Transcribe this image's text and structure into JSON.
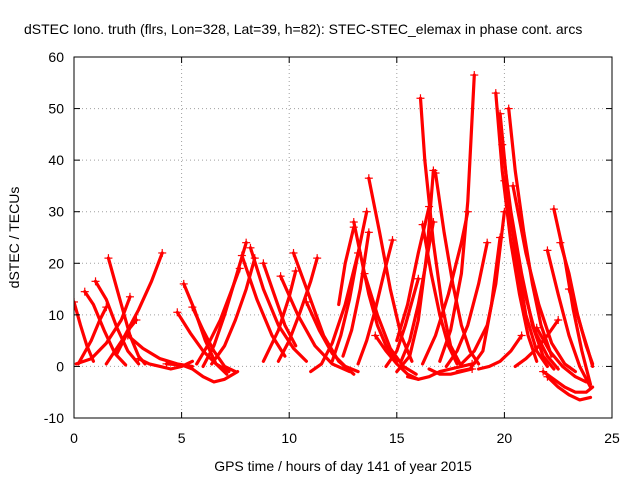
{
  "chart_data": {
    "type": "scatter",
    "title": "dSTEC Iono. truth (flrs, Lon=328, Lat=39, h=82): STEC-STEC_elemax in phase cont. arcs",
    "xlabel": "GPS time / hours of day 141 of year 2015",
    "ylabel": "dSTEC  / TECUs",
    "xlim": [
      0,
      25
    ],
    "ylim": [
      -10,
      60
    ],
    "xticks": [
      0,
      5,
      10,
      15,
      20,
      25
    ],
    "yticks": [
      -10,
      0,
      10,
      20,
      30,
      40,
      50,
      60
    ],
    "grid": true,
    "marker": "+",
    "color": "#ff0000",
    "series": [
      {
        "x": [
          0.0,
          0.3,
          0.6,
          0.9
        ],
        "y": [
          12.5,
          8.0,
          4.0,
          1.0
        ]
      },
      {
        "x": [
          0.1,
          0.8,
          1.5,
          2.2,
          2.6
        ],
        "y": [
          0.5,
          1.5,
          4.5,
          9.0,
          13.5
        ]
      },
      {
        "x": [
          0.5,
          0.9,
          1.4,
          1.9,
          2.4
        ],
        "y": [
          14.5,
          12.0,
          7.0,
          2.5,
          0.3
        ]
      },
      {
        "x": [
          1.0,
          1.5,
          2.0,
          2.5,
          3.0
        ],
        "y": [
          16.5,
          13.0,
          7.5,
          3.0,
          0.5
        ]
      },
      {
        "x": [
          1.6,
          1.8,
          2.2,
          2.6,
          3.0,
          3.3
        ],
        "y": [
          21.0,
          18.0,
          12.0,
          6.0,
          2.0,
          0.5
        ]
      },
      {
        "x": [
          0.2,
          0.8,
          1.2,
          1.5
        ],
        "y": [
          0.5,
          5.0,
          9.0,
          11.5
        ]
      },
      {
        "x": [
          1.5,
          2.3,
          3.0,
          3.6,
          4.1
        ],
        "y": [
          0.5,
          5.5,
          11.0,
          16.5,
          22.0
        ]
      },
      {
        "x": [
          2.0,
          2.3,
          2.6,
          2.9
        ],
        "y": [
          2.5,
          5.0,
          7.5,
          9.0
        ]
      },
      {
        "x": [
          2.5,
          3.2,
          4.0,
          4.8,
          5.5
        ],
        "y": [
          6.0,
          3.5,
          1.5,
          0.5,
          0.0
        ]
      },
      {
        "x": [
          3.0,
          3.5,
          4.0,
          4.5,
          5.0,
          5.5
        ],
        "y": [
          1.5,
          0.5,
          0.0,
          -0.5,
          0.0,
          1.0
        ]
      },
      {
        "x": [
          4.8,
          5.4,
          6.0,
          6.6,
          7.2
        ],
        "y": [
          10.5,
          6.5,
          3.0,
          0.5,
          -1.0
        ]
      },
      {
        "x": [
          5.1,
          5.6,
          6.1,
          6.6,
          7.1
        ],
        "y": [
          16.0,
          11.0,
          5.0,
          0.5,
          -1.5
        ]
      },
      {
        "x": [
          5.5,
          6.0,
          6.5,
          7.0,
          7.5
        ],
        "y": [
          11.5,
          7.0,
          3.0,
          0.0,
          -1.0
        ]
      },
      {
        "x": [
          4.3,
          5.0,
          5.5,
          6.0,
          6.5,
          7.0,
          7.6
        ],
        "y": [
          0.5,
          0.3,
          -0.5,
          -2.0,
          -3.0,
          -2.5,
          -1.0
        ]
      },
      {
        "x": [
          5.7,
          6.2,
          6.8,
          7.3,
          7.7
        ],
        "y": [
          0.5,
          4.0,
          9.0,
          14.5,
          19.0
        ]
      },
      {
        "x": [
          6.0,
          6.5,
          7.0,
          7.5,
          8.0
        ],
        "y": [
          0.0,
          4.0,
          10.0,
          17.0,
          24.0
        ]
      },
      {
        "x": [
          6.4,
          7.0,
          7.5,
          8.0,
          8.4
        ],
        "y": [
          0.5,
          4.0,
          9.0,
          15.0,
          21.0
        ]
      },
      {
        "x": [
          7.8,
          8.5,
          9.2,
          9.8
        ],
        "y": [
          21.5,
          13.0,
          6.0,
          2.0
        ]
      },
      {
        "x": [
          8.2,
          8.8,
          9.5,
          10.2,
          10.8
        ],
        "y": [
          23.0,
          15.0,
          8.0,
          3.5,
          1.0
        ]
      },
      {
        "x": [
          8.8,
          9.3,
          9.8,
          10.3
        ],
        "y": [
          20.0,
          14.0,
          8.0,
          4.0
        ]
      },
      {
        "x": [
          8.8,
          9.5,
          10.0,
          10.3
        ],
        "y": [
          1.0,
          7.0,
          13.5,
          18.5
        ]
      },
      {
        "x": [
          9.5,
          10.0,
          10.5,
          11.0,
          11.3
        ],
        "y": [
          1.0,
          5.0,
          10.5,
          16.5,
          21.0
        ]
      },
      {
        "x": [
          9.6,
          10.4,
          11.2,
          12.0,
          12.8
        ],
        "y": [
          17.5,
          10.0,
          4.0,
          0.5,
          -1.0
        ]
      },
      {
        "x": [
          10.2,
          10.9,
          11.6,
          12.3,
          13.0
        ],
        "y": [
          22.0,
          14.0,
          6.0,
          1.0,
          -1.5
        ]
      },
      {
        "x": [
          10.8,
          11.4,
          12.0,
          12.6,
          13.2
        ],
        "y": [
          12.5,
          7.0,
          2.5,
          0.0,
          -1.0
        ]
      },
      {
        "x": [
          11.0,
          11.5,
          12.0,
          12.6,
          13.2
        ],
        "y": [
          -1.0,
          0.5,
          4.5,
          12.0,
          22.0
        ]
      },
      {
        "x": [
          12.0,
          12.4,
          12.8,
          13.2,
          13.6
        ],
        "y": [
          1.0,
          6.0,
          13.0,
          22.0,
          30.0
        ]
      },
      {
        "x": [
          12.5,
          12.9,
          13.3,
          13.7
        ],
        "y": [
          2.0,
          7.0,
          15.0,
          26.0
        ]
      },
      {
        "x": [
          12.3,
          12.6,
          13.0
        ],
        "y": [
          12.0,
          20.0,
          27.0
        ]
      },
      {
        "x": [
          13.0,
          13.3,
          13.7,
          14.1,
          14.5,
          15.0
        ],
        "y": [
          28.0,
          22.0,
          14.0,
          8.0,
          4.0,
          1.0
        ]
      },
      {
        "x": [
          13.7,
          14.2,
          14.7,
          15.2,
          15.7
        ],
        "y": [
          36.5,
          26.0,
          15.0,
          6.0,
          1.0
        ]
      },
      {
        "x": [
          13.2,
          13.6,
          14.0,
          14.4,
          14.8
        ],
        "y": [
          0.5,
          5.0,
          11.0,
          18.0,
          24.5
        ]
      },
      {
        "x": [
          13.5,
          14.1,
          14.7,
          15.3,
          15.9
        ],
        "y": [
          18.0,
          10.0,
          3.5,
          0.0,
          -1.5
        ]
      },
      {
        "x": [
          14.0,
          14.5,
          15.0,
          15.5,
          16.0
        ],
        "y": [
          6.0,
          3.0,
          0.5,
          -1.5,
          -2.5
        ]
      },
      {
        "x": [
          15.0,
          15.5,
          16.0,
          16.5
        ],
        "y": [
          5.0,
          12.0,
          22.0,
          31.0
        ]
      },
      {
        "x": [
          15.2,
          15.6,
          16.0,
          16.4,
          16.7
        ],
        "y": [
          1.0,
          5.0,
          12.0,
          21.0,
          28.0
        ]
      },
      {
        "x": [
          14.5,
          15.0,
          15.4,
          15.8,
          16.0
        ],
        "y": [
          0.0,
          3.0,
          8.0,
          14.0,
          17.0
        ]
      },
      {
        "x": [
          15.0,
          15.6,
          16.0,
          16.4,
          16.7
        ],
        "y": [
          -1.0,
          2.0,
          9.0,
          22.0,
          38.0
        ]
      },
      {
        "x": [
          16.1,
          16.3,
          16.7,
          17.1,
          17.5,
          18.0
        ],
        "y": [
          52.0,
          40.0,
          24.0,
          12.0,
          4.0,
          0.0
        ]
      },
      {
        "x": [
          16.2,
          16.6,
          17.0,
          17.4,
          17.8
        ],
        "y": [
          27.5,
          18.0,
          10.0,
          4.0,
          0.5
        ]
      },
      {
        "x": [
          15.5,
          16.0,
          16.5,
          17.0,
          17.5,
          18.0,
          18.5
        ],
        "y": [
          -2.0,
          -2.5,
          -2.0,
          -1.0,
          -0.5,
          0.0,
          0.5
        ]
      },
      {
        "x": [
          16.5,
          17.0,
          17.5,
          18.0,
          18.5
        ],
        "y": [
          -0.5,
          -1.5,
          -1.5,
          -1.0,
          -0.5
        ]
      },
      {
        "x": [
          16.8,
          17.2,
          17.6,
          18.0,
          18.4,
          18.8
        ],
        "y": [
          37.5,
          26.0,
          16.0,
          8.0,
          3.0,
          0.5
        ]
      },
      {
        "x": [
          16.2,
          16.8,
          17.4,
          18.0,
          18.3
        ],
        "y": [
          0.5,
          6.0,
          14.0,
          24.0,
          30.0
        ]
      },
      {
        "x": [
          17.0,
          17.5,
          18.0,
          18.3,
          18.6
        ],
        "y": [
          1.0,
          7.0,
          18.0,
          32.0,
          56.5
        ]
      },
      {
        "x": [
          17.3,
          17.8,
          18.3,
          18.8,
          19.2
        ],
        "y": [
          0.0,
          3.0,
          8.0,
          16.0,
          24.0
        ]
      },
      {
        "x": [
          17.8,
          18.4,
          19.0,
          19.4,
          19.8
        ],
        "y": [
          -1.0,
          -0.5,
          3.0,
          12.0,
          25.0
        ]
      },
      {
        "x": [
          18.0,
          18.6,
          19.2,
          19.6,
          20.0
        ],
        "y": [
          0.5,
          3.0,
          8.0,
          16.0,
          30.0
        ]
      },
      {
        "x": [
          19.6,
          19.9,
          20.3,
          20.7,
          21.1,
          21.5
        ],
        "y": [
          53.0,
          38.0,
          24.0,
          14.0,
          6.0,
          1.0
        ]
      },
      {
        "x": [
          19.8,
          20.1,
          20.5,
          21.0,
          21.5,
          22.0
        ],
        "y": [
          49.0,
          36.0,
          22.0,
          10.0,
          3.0,
          0.0
        ]
      },
      {
        "x": [
          19.9,
          20.3,
          20.8,
          21.3,
          21.8,
          22.3
        ],
        "y": [
          43.0,
          30.0,
          18.0,
          8.0,
          2.0,
          -0.5
        ]
      },
      {
        "x": [
          20.0,
          20.4,
          20.9,
          21.4,
          22.0,
          22.5
        ],
        "y": [
          36.0,
          26.0,
          15.0,
          7.0,
          2.0,
          -0.5
        ]
      },
      {
        "x": [
          20.2,
          20.5,
          20.9,
          21.3,
          21.7,
          22.2
        ],
        "y": [
          50.0,
          38.0,
          26.0,
          16.0,
          8.0,
          2.0
        ]
      },
      {
        "x": [
          20.4,
          21.0,
          21.6,
          22.2,
          22.8,
          23.3
        ],
        "y": [
          35.0,
          22.0,
          12.0,
          4.5,
          0.5,
          -1.0
        ]
      },
      {
        "x": [
          21.5,
          22.1,
          22.7,
          23.3,
          23.8
        ],
        "y": [
          7.5,
          3.0,
          0.0,
          -2.0,
          -3.0
        ]
      },
      {
        "x": [
          22.0,
          22.5,
          23.0,
          23.5,
          24.0
        ],
        "y": [
          22.5,
          14.0,
          6.0,
          0.0,
          -4.0
        ]
      },
      {
        "x": [
          22.3,
          22.8,
          23.2,
          23.6,
          24.0
        ],
        "y": [
          30.5,
          21.0,
          11.0,
          3.0,
          -3.5
        ]
      },
      {
        "x": [
          22.6,
          23.0,
          23.4,
          23.8,
          24.1
        ],
        "y": [
          24.0,
          18.0,
          10.0,
          4.0,
          0.5
        ]
      },
      {
        "x": [
          23.0,
          23.3,
          23.6,
          23.9,
          24.1
        ],
        "y": [
          15.0,
          11.5,
          7.0,
          3.0,
          0.0
        ]
      },
      {
        "x": [
          22.0,
          22.5,
          23.0,
          23.5,
          24.0
        ],
        "y": [
          -2.0,
          -4.0,
          -5.5,
          -6.5,
          -6.0
        ]
      },
      {
        "x": [
          21.8,
          22.3,
          22.8,
          23.3,
          23.8,
          24.1
        ],
        "y": [
          -1.0,
          -2.5,
          -4.0,
          -5.0,
          -5.0,
          -4.0
        ]
      },
      {
        "x": [
          20.5,
          21.0,
          21.5,
          22.0,
          22.5
        ],
        "y": [
          0.0,
          1.5,
          3.5,
          6.0,
          9.0
        ]
      },
      {
        "x": [
          18.8,
          19.3,
          19.8,
          20.3,
          20.8
        ],
        "y": [
          -0.5,
          0.0,
          1.0,
          3.0,
          6.0
        ]
      }
    ]
  }
}
